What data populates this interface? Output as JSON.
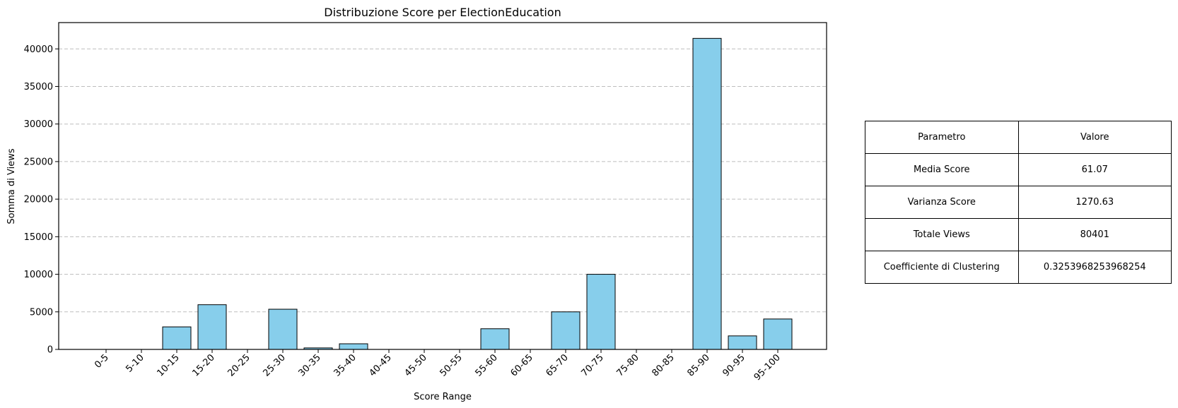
{
  "chart_data": {
    "type": "bar",
    "title": "Distribuzione Score per ElectionEducation",
    "xlabel": "Score Range",
    "ylabel": "Somma di Views",
    "categories": [
      "0-5",
      "5-10",
      "10-15",
      "15-20",
      "20-25",
      "25-30",
      "30-35",
      "35-40",
      "40-45",
      "45-50",
      "50-55",
      "55-60",
      "60-65",
      "65-70",
      "70-75",
      "75-80",
      "80-85",
      "85-90",
      "90-95",
      "95-100"
    ],
    "values": [
      0,
      0,
      3000,
      5950,
      0,
      5350,
      200,
      750,
      0,
      0,
      0,
      2750,
      0,
      5000,
      10000,
      0,
      0,
      41400,
      1800,
      4050
    ],
    "ylim": [
      0,
      43500
    ],
    "yticks": [
      0,
      5000,
      10000,
      15000,
      20000,
      25000,
      30000,
      35000,
      40000
    ],
    "grid": "y-dashed",
    "bar_color": "#87ceeb",
    "edge_color": "#000000"
  },
  "table": {
    "header": [
      "Parametro",
      "Valore"
    ],
    "rows": [
      [
        "Media Score",
        "61.07"
      ],
      [
        "Varianza Score",
        "1270.63"
      ],
      [
        "Totale Views",
        "80401"
      ],
      [
        "Coefficiente di Clustering",
        "0.3253968253968254"
      ]
    ]
  }
}
